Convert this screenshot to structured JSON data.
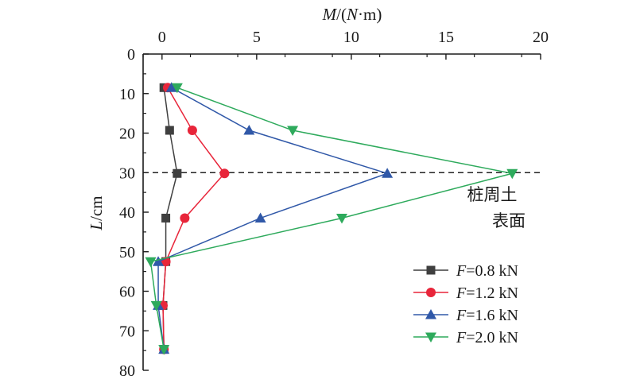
{
  "chart_data": {
    "type": "line",
    "x_axis": {
      "label_var": "M",
      "label_unit_open": "/(",
      "label_unit_var": "N",
      "label_unit_rest": "·m)",
      "position": "top",
      "range": [
        -1,
        20
      ],
      "ticks": [
        0,
        5,
        10,
        15,
        20
      ]
    },
    "y_axis": {
      "label_var": "L",
      "label_unit": "/cm",
      "inverted": true,
      "range": [
        0,
        80
      ],
      "ticks": [
        0,
        10,
        20,
        30,
        40,
        50,
        60,
        70,
        80
      ]
    },
    "reference_line": {
      "y": 30,
      "style": "dashed"
    },
    "annotation": {
      "line1": "桩周土",
      "line2": "表面"
    },
    "legend": {
      "position": "bottom-right"
    },
    "series": [
      {
        "name_var": "F",
        "name_rest": "=0.8 kN",
        "color": "#3f3f3f",
        "marker": "square",
        "points": [
          [
            0.1,
            8.5
          ],
          [
            0.4,
            19.3
          ],
          [
            0.8,
            30.2
          ],
          [
            0.2,
            41.5
          ],
          [
            0.2,
            52.5
          ],
          [
            0.05,
            63.6
          ],
          [
            0.1,
            74.7
          ]
        ]
      },
      {
        "name_var": "F",
        "name_rest": "=1.2 kN",
        "color": "#e8253a",
        "marker": "circle",
        "points": [
          [
            0.3,
            8.5
          ],
          [
            1.6,
            19.3
          ],
          [
            3.3,
            30.2
          ],
          [
            1.2,
            41.5
          ],
          [
            0.2,
            52.5
          ],
          [
            0.05,
            63.6
          ],
          [
            0.1,
            74.7
          ]
        ]
      },
      {
        "name_var": "F",
        "name_rest": "=1.6 kN",
        "color": "#3058a8",
        "marker": "triangle-up",
        "points": [
          [
            0.5,
            8.5
          ],
          [
            4.6,
            19.3
          ],
          [
            11.9,
            30.2
          ],
          [
            5.2,
            41.5
          ],
          [
            -0.2,
            52.5
          ],
          [
            -0.2,
            63.6
          ],
          [
            0.1,
            74.7
          ]
        ]
      },
      {
        "name_var": "F",
        "name_rest": "=2.0 kN",
        "color": "#2eaa5c",
        "marker": "triangle-down",
        "points": [
          [
            0.8,
            8.5
          ],
          [
            6.9,
            19.3
          ],
          [
            18.5,
            30.2
          ],
          [
            9.5,
            41.5
          ],
          [
            -0.6,
            52.5
          ],
          [
            -0.3,
            63.6
          ],
          [
            0.1,
            74.7
          ]
        ]
      }
    ]
  }
}
